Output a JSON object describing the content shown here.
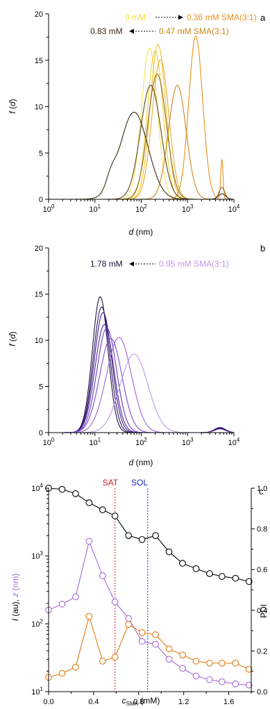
{
  "figure": {
    "panels": [
      {
        "letter": "a",
        "title": "",
        "ylabel": "f (d)",
        "xlabel": "d (nm)",
        "annotations": {
          "row1_from": "0 mM",
          "row1_to": "0.36 mM SMA(3:1)",
          "row2_from": "0.83 mM",
          "row2_to": "0.47 mM SMA(3:1)"
        }
      },
      {
        "letter": "b",
        "title": "",
        "ylabel": "f (d)",
        "xlabel": "d (nm)",
        "annotations": {
          "row1_from": "1.78 mM",
          "row1_to": "0.95 mM SMA(3:1)"
        }
      },
      {
        "letter": "c",
        "title": "",
        "ylabel_left_I": "I (au),",
        "ylabel_left_z": "z (nm)",
        "ylabel_right": "PDI",
        "xlabel": "cSMA (mM)",
        "xlabel_sub": "SMA",
        "markers": {
          "sat": "SAT",
          "sol": "SOL"
        }
      }
    ],
    "colors": {
      "panel_a_from_light": "#f2dd2a",
      "panel_a_orange": "#e8901a",
      "panel_a_dark": "#3a2a10",
      "panel_b_dark": "#1e0f3a",
      "panel_b_light": "#b89be3",
      "series_I": "#000000",
      "series_z": "#a66ad6",
      "series_PDI": "#e07a12",
      "sat_line": "#d02020",
      "sol_line": "#2020d0"
    }
  },
  "chart_data": [
    {
      "panel": "a",
      "type": "line",
      "xscale": "log",
      "xlabel": "d (nm)",
      "ylabel": "f (d)",
      "xlim": [
        1,
        10000
      ],
      "ylim": [
        0,
        20
      ],
      "x_ticks": [
        "10^0",
        "10^1",
        "10^2",
        "10^3",
        "10^4"
      ],
      "y_ticks": [
        "0",
        "5",
        "10",
        "15",
        "20"
      ],
      "series": [
        {
          "color": "#f7e35a",
          "peaks": [
            {
              "center_nm": 150,
              "height": 16.3,
              "width_dec": 0.17
            }
          ]
        },
        {
          "color": "#f2d13a",
          "peaks": [
            {
              "center_nm": 200,
              "height": 16.0,
              "width_dec": 0.17
            }
          ]
        },
        {
          "color": "#f0c02c",
          "peaks": [
            {
              "center_nm": 230,
              "height": 16.7,
              "width_dec": 0.17
            }
          ]
        },
        {
          "color": "#e9ab28",
          "peaks": [
            {
              "center_nm": 260,
              "height": 15.1,
              "width_dec": 0.18
            }
          ]
        },
        {
          "color": "#e8901a",
          "peaks": [
            {
              "center_nm": 1500,
              "height": 17.6,
              "width_dec": 0.15
            },
            {
              "center_nm": 5500,
              "height": 4.3,
              "width_dec": 0.025
            }
          ]
        },
        {
          "color": "#c9861c",
          "peaks": [
            {
              "center_nm": 600,
              "height": 12.3,
              "width_dec": 0.19
            }
          ]
        },
        {
          "color": "#8a6418",
          "peaks": [
            {
              "center_nm": 220,
              "height": 13.5,
              "width_dec": 0.2
            },
            {
              "center_nm": 5500,
              "height": 1.3,
              "width_dec": 0.06
            }
          ]
        },
        {
          "color": "#5e4416",
          "peaks": [
            {
              "center_nm": 160,
              "height": 12.3,
              "width_dec": 0.22
            }
          ]
        },
        {
          "color": "#3a2a10",
          "peaks": [
            {
              "center_nm": 70,
              "height": 9.4,
              "width_dec": 0.3
            },
            {
              "center_nm": 22,
              "height": 1.2,
              "width_dec": 0.1
            },
            {
              "center_nm": 5500,
              "height": 0.6,
              "width_dec": 0.08
            }
          ]
        }
      ]
    },
    {
      "panel": "b",
      "type": "line",
      "xscale": "log",
      "xlabel": "d (nm)",
      "ylabel": "f (d)",
      "xlim": [
        1,
        10000
      ],
      "ylim": [
        0,
        20
      ],
      "x_ticks": [
        "10^0",
        "10^1",
        "10^2",
        "10^3",
        "10^4"
      ],
      "y_ticks": [
        "0",
        "5",
        "10",
        "15",
        "20"
      ],
      "series": [
        {
          "color": "#1e0f3a",
          "peaks": [
            {
              "center_nm": 13,
              "height": 14.7,
              "width_dec": 0.17
            },
            {
              "center_nm": 5000,
              "height": 0.55,
              "width_dec": 0.12
            }
          ]
        },
        {
          "color": "#2d1560",
          "peaks": [
            {
              "center_nm": 14,
              "height": 13.6,
              "width_dec": 0.18
            },
            {
              "center_nm": 5000,
              "height": 0.5,
              "width_dec": 0.12
            }
          ]
        },
        {
          "color": "#3c1c84",
          "peaks": [
            {
              "center_nm": 15,
              "height": 13.0,
              "width_dec": 0.19
            },
            {
              "center_nm": 5000,
              "height": 0.45,
              "width_dec": 0.12
            }
          ]
        },
        {
          "color": "#4f26a6",
          "peaks": [
            {
              "center_nm": 16,
              "height": 11.7,
              "width_dec": 0.2
            },
            {
              "center_nm": 5000,
              "height": 0.4,
              "width_dec": 0.12
            }
          ]
        },
        {
          "color": "#6a36c2",
          "peaks": [
            {
              "center_nm": 18,
              "height": 11.3,
              "width_dec": 0.21
            }
          ]
        },
        {
          "color": "#7f48cf",
          "peaks": [
            {
              "center_nm": 22,
              "height": 10.2,
              "width_dec": 0.24
            }
          ]
        },
        {
          "color": "#9a66dc",
          "peaks": [
            {
              "center_nm": 33,
              "height": 10.3,
              "width_dec": 0.27
            }
          ]
        },
        {
          "color": "#b89be3",
          "peaks": [
            {
              "center_nm": 70,
              "height": 8.5,
              "width_dec": 0.3
            }
          ]
        }
      ]
    },
    {
      "panel": "c",
      "type": "line",
      "xlabel": "cSMA (mM)",
      "xlim": [
        0,
        1.8
      ],
      "x_ticks": [
        "0.0",
        "0.4",
        "0.8",
        "1.2",
        "1.6"
      ],
      "left_axis": {
        "scale": "log",
        "ylim": [
          10,
          10000
        ],
        "ticks": [
          "10^1",
          "10^2",
          "10^3",
          "10^4"
        ],
        "label": "I (au), z (nm)"
      },
      "right_axis": {
        "scale": "linear",
        "ylim": [
          0,
          1.0
        ],
        "ticks": [
          "0.0",
          "0.2",
          "0.4",
          "0.6",
          "0.8",
          "1.0"
        ],
        "label": "PDI"
      },
      "vlines": [
        {
          "label": "SAT",
          "x": 0.59
        },
        {
          "label": "SOL",
          "x": 0.88
        }
      ],
      "series": [
        {
          "axis": "left",
          "color": "#000000",
          "marker": "circle",
          "x": [
            0.0,
            0.12,
            0.24,
            0.36,
            0.48,
            0.59,
            0.71,
            0.83,
            0.95,
            1.07,
            1.19,
            1.31,
            1.43,
            1.54,
            1.66,
            1.78
          ],
          "y": [
            10000,
            9600,
            8300,
            6100,
            4800,
            3900,
            2000,
            1750,
            2000,
            1150,
            780,
            650,
            550,
            500,
            470,
            420
          ]
        },
        {
          "axis": "left",
          "color": "#a66ad6",
          "marker": "circle",
          "x": [
            0.0,
            0.12,
            0.24,
            0.36,
            0.48,
            0.59,
            0.71,
            0.83,
            0.95,
            1.07,
            1.19,
            1.31,
            1.43,
            1.54,
            1.66,
            1.78
          ],
          "y": [
            160,
            195,
            250,
            1650,
            510,
            210,
            120,
            55,
            50,
            30,
            22,
            17,
            15,
            14,
            13,
            12.5
          ]
        },
        {
          "axis": "right",
          "color": "#e07a12",
          "marker": "circle",
          "x": [
            0.0,
            0.12,
            0.24,
            0.36,
            0.48,
            0.59,
            0.71,
            0.83,
            0.95,
            1.07,
            1.19,
            1.31,
            1.43,
            1.54,
            1.66,
            1.78
          ],
          "y": [
            0.07,
            0.09,
            0.12,
            0.37,
            0.15,
            0.17,
            0.33,
            0.29,
            0.28,
            0.21,
            0.18,
            0.15,
            0.14,
            0.14,
            0.14,
            0.11
          ]
        }
      ]
    }
  ]
}
